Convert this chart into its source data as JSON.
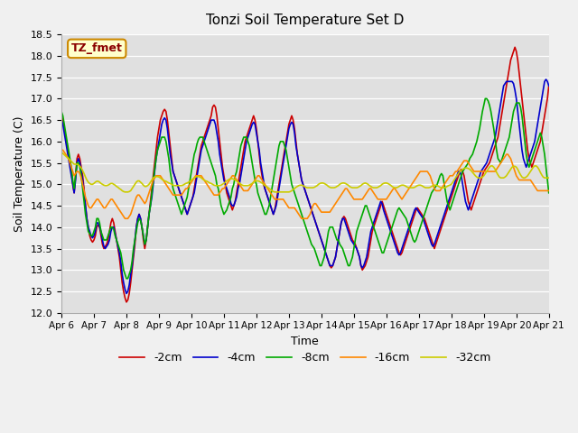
{
  "title": "Tonzi Soil Temperature Set D",
  "xlabel": "Time",
  "ylabel": "Soil Temperature (C)",
  "ylim": [
    12.0,
    18.5
  ],
  "legend_label": "TZ_fmet",
  "series_labels": [
    "-2cm",
    "-4cm",
    "-8cm",
    "-16cm",
    "-32cm"
  ],
  "series_colors": [
    "#cc0000",
    "#0000cc",
    "#00aa00",
    "#ff8800",
    "#cccc00"
  ],
  "x_tick_labels": [
    "Apr 6",
    "Apr 7",
    "Apr 8",
    "Apr 9",
    "Apr 10",
    "Apr 11",
    "Apr 12",
    "Apr 13",
    "Apr 14",
    "Apr 15",
    "Apr 16",
    "Apr 17",
    "Apr 18",
    "Apr 19",
    "Apr 20",
    "Apr 21"
  ],
  "data_2cm": [
    16.6,
    16.5,
    16.3,
    16.1,
    15.9,
    15.7,
    15.5,
    15.3,
    15.0,
    14.8,
    15.2,
    15.6,
    15.7,
    15.6,
    15.4,
    15.2,
    14.9,
    14.5,
    14.2,
    14.0,
    13.8,
    13.7,
    13.65,
    13.7,
    13.8,
    14.0,
    14.05,
    14.0,
    13.8,
    13.6,
    13.5,
    13.55,
    13.6,
    13.7,
    13.9,
    14.1,
    14.2,
    14.1,
    13.9,
    13.7,
    13.5,
    13.3,
    13.0,
    12.7,
    12.5,
    12.35,
    12.25,
    12.3,
    12.45,
    12.7,
    13.0,
    13.3,
    13.6,
    14.0,
    14.2,
    14.3,
    14.2,
    14.0,
    13.7,
    13.5,
    13.7,
    14.0,
    14.3,
    14.6,
    14.9,
    15.2,
    15.5,
    15.8,
    16.1,
    16.3,
    16.5,
    16.6,
    16.7,
    16.75,
    16.7,
    16.5,
    16.2,
    15.9,
    15.6,
    15.3,
    15.2,
    15.1,
    15.0,
    14.9,
    14.8,
    14.7,
    14.6,
    14.5,
    14.4,
    14.3,
    14.4,
    14.5,
    14.6,
    14.7,
    14.9,
    15.1,
    15.3,
    15.5,
    15.7,
    15.9,
    16.0,
    16.1,
    16.2,
    16.3,
    16.4,
    16.5,
    16.6,
    16.8,
    16.85,
    16.8,
    16.6,
    16.3,
    16.0,
    15.7,
    15.4,
    15.2,
    15.0,
    14.8,
    14.7,
    14.6,
    14.5,
    14.4,
    14.5,
    14.6,
    14.8,
    15.0,
    15.2,
    15.4,
    15.6,
    15.8,
    16.0,
    16.1,
    16.2,
    16.3,
    16.4,
    16.5,
    16.6,
    16.5,
    16.3,
    16.0,
    15.7,
    15.4,
    15.2,
    15.0,
    14.9,
    14.8,
    14.7,
    14.6,
    14.5,
    14.4,
    14.3,
    14.4,
    14.6,
    14.8,
    15.0,
    15.2,
    15.4,
    15.6,
    15.8,
    16.0,
    16.2,
    16.4,
    16.5,
    16.6,
    16.5,
    16.3,
    16.0,
    15.7,
    15.5,
    15.3,
    15.1,
    15.0,
    14.9,
    14.8,
    14.7,
    14.6,
    14.5,
    14.4,
    14.3,
    14.2,
    14.1,
    14.0,
    13.9,
    13.8,
    13.7,
    13.6,
    13.5,
    13.4,
    13.3,
    13.2,
    13.1,
    13.05,
    13.1,
    13.2,
    13.3,
    13.5,
    13.7,
    13.9,
    14.1,
    14.2,
    14.25,
    14.2,
    14.1,
    14.0,
    13.9,
    13.8,
    13.7,
    13.65,
    13.6,
    13.5,
    13.4,
    13.3,
    13.1,
    13.0,
    13.05,
    13.1,
    13.2,
    13.3,
    13.5,
    13.7,
    13.9,
    14.0,
    14.1,
    14.2,
    14.3,
    14.4,
    14.5,
    14.6,
    14.5,
    14.4,
    14.3,
    14.2,
    14.1,
    14.0,
    13.9,
    13.8,
    13.7,
    13.6,
    13.5,
    13.4,
    13.35,
    13.4,
    13.5,
    13.6,
    13.7,
    13.8,
    13.9,
    14.0,
    14.1,
    14.2,
    14.3,
    14.4,
    14.45,
    14.4,
    14.35,
    14.3,
    14.25,
    14.2,
    14.1,
    14.0,
    13.9,
    13.8,
    13.7,
    13.6,
    13.5,
    13.6,
    13.7,
    13.8,
    13.9,
    14.0,
    14.1,
    14.2,
    14.3,
    14.4,
    14.5,
    14.6,
    14.7,
    14.8,
    14.9,
    15.0,
    15.1,
    15.2,
    15.3,
    15.35,
    15.3,
    15.2,
    15.0,
    14.8,
    14.6,
    14.5,
    14.4,
    14.5,
    14.6,
    14.7,
    14.8,
    14.9,
    15.0,
    15.1,
    15.2,
    15.3,
    15.35,
    15.4,
    15.45,
    15.5,
    15.6,
    15.7,
    15.8,
    15.9,
    16.0,
    16.1,
    16.3,
    16.5,
    16.7,
    16.9,
    17.1,
    17.3,
    17.5,
    17.7,
    17.9,
    18.0,
    18.1,
    18.2,
    18.1,
    17.9,
    17.6,
    17.3,
    17.0,
    16.7,
    16.4,
    16.1,
    15.8,
    15.6,
    15.5,
    15.4,
    15.5,
    15.6,
    15.7,
    15.8,
    15.9,
    16.0,
    16.2,
    16.4,
    16.6,
    16.8,
    17.0,
    17.3,
    17.6,
    17.9,
    18.1,
    18.2,
    18.1,
    17.9,
    17.6,
    17.3,
    17.0,
    16.7,
    16.4,
    16.1,
    15.8,
    15.6,
    15.5,
    15.4,
    15.5,
    15.6,
    15.7,
    15.8,
    15.9,
    16.0,
    16.1,
    16.2,
    16.3,
    16.2,
    16.0,
    15.7,
    15.4,
    15.1,
    14.8,
    14.6,
    14.5,
    14.4,
    14.45,
    14.5
  ],
  "data_4cm": [
    16.5,
    16.4,
    16.2,
    16.0,
    15.8,
    15.6,
    15.4,
    15.2,
    15.0,
    14.8,
    15.1,
    15.5,
    15.6,
    15.5,
    15.3,
    15.1,
    14.8,
    14.5,
    14.2,
    14.0,
    13.9,
    13.8,
    13.75,
    13.8,
    13.9,
    14.1,
    14.1,
    14.0,
    13.9,
    13.7,
    13.55,
    13.5,
    13.55,
    13.6,
    13.7,
    13.9,
    14.0,
    14.0,
    13.85,
    13.7,
    13.55,
    13.4,
    13.2,
    12.9,
    12.7,
    12.55,
    12.45,
    12.5,
    12.65,
    12.9,
    13.1,
    13.4,
    13.7,
    14.0,
    14.2,
    14.3,
    14.2,
    14.0,
    13.8,
    13.6,
    13.7,
    14.0,
    14.3,
    14.5,
    14.7,
    15.0,
    15.3,
    15.6,
    15.8,
    16.0,
    16.2,
    16.4,
    16.5,
    16.55,
    16.5,
    16.3,
    16.0,
    15.7,
    15.5,
    15.3,
    15.2,
    15.1,
    15.0,
    14.9,
    14.8,
    14.7,
    14.6,
    14.5,
    14.4,
    14.3,
    14.4,
    14.5,
    14.6,
    14.7,
    14.8,
    15.0,
    15.2,
    15.4,
    15.6,
    15.8,
    15.9,
    16.0,
    16.1,
    16.2,
    16.3,
    16.4,
    16.5,
    16.5,
    16.5,
    16.4,
    16.2,
    16.0,
    15.7,
    15.5,
    15.3,
    15.1,
    15.0,
    14.9,
    14.8,
    14.7,
    14.55,
    14.5,
    14.5,
    14.6,
    14.7,
    14.9,
    15.0,
    15.2,
    15.4,
    15.6,
    15.8,
    16.0,
    16.1,
    16.2,
    16.3,
    16.4,
    16.45,
    16.4,
    16.2,
    16.0,
    15.8,
    15.5,
    15.3,
    15.1,
    14.9,
    14.8,
    14.7,
    14.6,
    14.5,
    14.4,
    14.3,
    14.4,
    14.5,
    14.7,
    14.9,
    15.1,
    15.3,
    15.5,
    15.7,
    15.9,
    16.1,
    16.3,
    16.4,
    16.45,
    16.4,
    16.2,
    15.9,
    15.7,
    15.5,
    15.3,
    15.1,
    15.0,
    14.9,
    14.8,
    14.7,
    14.6,
    14.5,
    14.4,
    14.3,
    14.2,
    14.1,
    14.0,
    13.9,
    13.8,
    13.7,
    13.6,
    13.5,
    13.4,
    13.3,
    13.2,
    13.1,
    13.1,
    13.1,
    13.2,
    13.3,
    13.5,
    13.7,
    13.9,
    14.1,
    14.2,
    14.2,
    14.1,
    14.0,
    13.9,
    13.8,
    13.7,
    13.65,
    13.6,
    13.55,
    13.5,
    13.4,
    13.3,
    13.1,
    13.05,
    13.1,
    13.2,
    13.3,
    13.5,
    13.7,
    13.9,
    14.0,
    14.1,
    14.2,
    14.3,
    14.4,
    14.5,
    14.6,
    14.55,
    14.4,
    14.3,
    14.2,
    14.1,
    14.0,
    13.9,
    13.8,
    13.7,
    13.6,
    13.5,
    13.4,
    13.35,
    13.4,
    13.5,
    13.6,
    13.7,
    13.8,
    13.9,
    14.0,
    14.1,
    14.2,
    14.3,
    14.4,
    14.45,
    14.4,
    14.35,
    14.3,
    14.25,
    14.2,
    14.1,
    14.0,
    13.9,
    13.8,
    13.7,
    13.6,
    13.55,
    13.6,
    13.7,
    13.8,
    13.9,
    14.0,
    14.1,
    14.2,
    14.3,
    14.4,
    14.5,
    14.6,
    14.7,
    14.8,
    14.9,
    15.0,
    15.1,
    15.2,
    15.3,
    15.3,
    15.2,
    15.0,
    14.8,
    14.6,
    14.5,
    14.4,
    14.5,
    14.6,
    14.7,
    14.8,
    14.9,
    15.0,
    15.1,
    15.2,
    15.3,
    15.35,
    15.4,
    15.45,
    15.5,
    15.6,
    15.7,
    15.8,
    15.9,
    16.0,
    16.1,
    16.3,
    16.5,
    16.7,
    16.9,
    17.1,
    17.3,
    17.35,
    17.4,
    17.4,
    17.4,
    17.4,
    17.4,
    17.35,
    17.2,
    17.0,
    16.7,
    16.4,
    16.1,
    15.8,
    15.6,
    15.5,
    15.4,
    15.5,
    15.6,
    15.7,
    15.8,
    15.9,
    16.0,
    16.2,
    16.4,
    16.6,
    16.8,
    17.0,
    17.2,
    17.4,
    17.45,
    17.4,
    17.3,
    17.1,
    16.8,
    16.5,
    16.2,
    15.9,
    15.7,
    15.6,
    15.5,
    15.4,
    15.5,
    15.6,
    15.7,
    15.8,
    15.9,
    16.0,
    16.1,
    16.2,
    16.1,
    15.9,
    15.7,
    15.4,
    15.1,
    14.8,
    14.6,
    14.5,
    14.4,
    14.45,
    14.5
  ],
  "data_8cm": [
    16.7,
    16.6,
    16.4,
    16.2,
    16.0,
    15.8,
    15.6,
    15.4,
    15.1,
    14.9,
    15.2,
    15.5,
    15.5,
    15.4,
    15.2,
    14.9,
    14.6,
    14.3,
    14.1,
    13.9,
    13.85,
    13.8,
    13.8,
    13.9,
    14.0,
    14.2,
    14.2,
    14.1,
    13.9,
    13.8,
    13.7,
    13.7,
    13.7,
    13.8,
    13.9,
    14.0,
    14.0,
    13.95,
    13.8,
    13.7,
    13.6,
    13.5,
    13.4,
    13.2,
    13.0,
    12.9,
    12.8,
    12.8,
    12.9,
    13.0,
    13.2,
    13.5,
    13.7,
    13.9,
    14.1,
    14.2,
    14.15,
    14.0,
    13.8,
    13.6,
    13.7,
    14.0,
    14.3,
    14.5,
    14.8,
    15.1,
    15.35,
    15.6,
    15.8,
    15.9,
    16.0,
    16.1,
    16.1,
    16.1,
    16.0,
    15.8,
    15.6,
    15.3,
    15.1,
    14.9,
    14.8,
    14.7,
    14.6,
    14.5,
    14.4,
    14.3,
    14.4,
    14.5,
    14.6,
    14.7,
    14.9,
    15.1,
    15.3,
    15.5,
    15.7,
    15.8,
    15.95,
    16.05,
    16.1,
    16.1,
    16.1,
    16.0,
    15.9,
    15.8,
    15.7,
    15.6,
    15.5,
    15.4,
    15.3,
    15.2,
    15.0,
    14.9,
    14.7,
    14.5,
    14.4,
    14.3,
    14.35,
    14.4,
    14.5,
    14.6,
    14.7,
    14.9,
    15.0,
    15.2,
    15.3,
    15.5,
    15.7,
    15.9,
    16.0,
    16.1,
    16.1,
    16.1,
    16.0,
    15.9,
    15.7,
    15.5,
    15.3,
    15.1,
    15.0,
    14.8,
    14.7,
    14.6,
    14.5,
    14.4,
    14.3,
    14.3,
    14.4,
    14.5,
    14.7,
    14.9,
    15.1,
    15.3,
    15.5,
    15.7,
    15.9,
    16.0,
    16.0,
    16.0,
    15.9,
    15.8,
    15.6,
    15.4,
    15.2,
    15.0,
    14.9,
    14.8,
    14.7,
    14.6,
    14.5,
    14.4,
    14.3,
    14.2,
    14.1,
    14.0,
    13.9,
    13.8,
    13.7,
    13.6,
    13.55,
    13.5,
    13.4,
    13.3,
    13.2,
    13.1,
    13.1,
    13.2,
    13.3,
    13.5,
    13.7,
    13.9,
    14.0,
    14.0,
    14.0,
    13.9,
    13.8,
    13.7,
    13.7,
    13.6,
    13.55,
    13.5,
    13.4,
    13.3,
    13.2,
    13.1,
    13.1,
    13.2,
    13.3,
    13.5,
    13.7,
    13.9,
    14.0,
    14.1,
    14.2,
    14.3,
    14.4,
    14.5,
    14.5,
    14.4,
    14.3,
    14.2,
    14.1,
    14.0,
    13.9,
    13.8,
    13.7,
    13.6,
    13.5,
    13.4,
    13.4,
    13.5,
    13.6,
    13.7,
    13.8,
    13.9,
    14.0,
    14.1,
    14.2,
    14.3,
    14.4,
    14.45,
    14.4,
    14.35,
    14.3,
    14.25,
    14.2,
    14.1,
    14.0,
    13.9,
    13.8,
    13.7,
    13.65,
    13.7,
    13.8,
    13.9,
    14.0,
    14.1,
    14.2,
    14.3,
    14.4,
    14.5,
    14.6,
    14.7,
    14.8,
    14.85,
    14.9,
    14.95,
    15.0,
    15.1,
    15.2,
    15.25,
    15.2,
    15.0,
    14.8,
    14.6,
    14.5,
    14.4,
    14.5,
    14.6,
    14.7,
    14.8,
    14.9,
    15.0,
    15.1,
    15.2,
    15.3,
    15.35,
    15.4,
    15.45,
    15.5,
    15.6,
    15.65,
    15.7,
    15.8,
    15.9,
    16.0,
    16.15,
    16.3,
    16.5,
    16.7,
    16.85,
    17.0,
    17.0,
    16.95,
    16.85,
    16.7,
    16.5,
    16.3,
    16.05,
    15.8,
    15.6,
    15.55,
    15.5,
    15.6,
    15.7,
    15.8,
    15.9,
    16.0,
    16.1,
    16.3,
    16.5,
    16.7,
    16.8,
    16.9,
    16.9,
    16.9,
    16.8,
    16.6,
    16.3,
    16.0,
    15.7,
    15.5,
    15.4,
    15.5,
    15.6,
    15.7,
    15.8,
    15.9,
    16.0,
    16.1,
    16.2,
    16.1,
    15.9,
    15.7,
    15.4,
    15.1,
    14.8,
    14.6,
    14.5,
    14.4,
    14.45,
    14.5
  ],
  "data_16cm": [
    15.8,
    15.8,
    15.75,
    15.7,
    15.65,
    15.6,
    15.5,
    15.4,
    15.3,
    15.2,
    15.25,
    15.3,
    15.3,
    15.25,
    15.15,
    15.0,
    14.85,
    14.7,
    14.6,
    14.5,
    14.45,
    14.45,
    14.5,
    14.55,
    14.6,
    14.65,
    14.65,
    14.6,
    14.55,
    14.5,
    14.45,
    14.45,
    14.5,
    14.55,
    14.6,
    14.65,
    14.65,
    14.6,
    14.55,
    14.5,
    14.45,
    14.4,
    14.35,
    14.3,
    14.25,
    14.2,
    14.2,
    14.2,
    14.25,
    14.3,
    14.4,
    14.5,
    14.6,
    14.7,
    14.75,
    14.75,
    14.7,
    14.65,
    14.6,
    14.55,
    14.6,
    14.7,
    14.8,
    14.9,
    15.0,
    15.1,
    15.15,
    15.2,
    15.2,
    15.2,
    15.2,
    15.15,
    15.1,
    15.05,
    15.0,
    14.95,
    14.9,
    14.85,
    14.8,
    14.75,
    14.75,
    14.75,
    14.75,
    14.75,
    14.75,
    14.75,
    14.8,
    14.85,
    14.9,
    14.9,
    14.95,
    15.0,
    15.05,
    15.1,
    15.15,
    15.2,
    15.2,
    15.2,
    15.2,
    15.2,
    15.15,
    15.1,
    15.05,
    15.0,
    14.95,
    14.9,
    14.85,
    14.8,
    14.75,
    14.75,
    14.75,
    14.75,
    14.8,
    14.85,
    14.9,
    14.9,
    14.95,
    15.0,
    15.05,
    15.1,
    15.15,
    15.2,
    15.2,
    15.15,
    15.1,
    15.05,
    15.0,
    14.95,
    14.9,
    14.85,
    14.85,
    14.85,
    14.85,
    14.9,
    14.95,
    15.0,
    15.05,
    15.1,
    15.15,
    15.2,
    15.2,
    15.15,
    15.1,
    15.05,
    15.0,
    14.95,
    14.9,
    14.85,
    14.8,
    14.75,
    14.7,
    14.65,
    14.65,
    14.65,
    14.65,
    14.65,
    14.65,
    14.65,
    14.6,
    14.55,
    14.5,
    14.45,
    14.45,
    14.45,
    14.45,
    14.45,
    14.4,
    14.35,
    14.3,
    14.25,
    14.2,
    14.2,
    14.2,
    14.2,
    14.2,
    14.25,
    14.3,
    14.4,
    14.5,
    14.55,
    14.55,
    14.5,
    14.45,
    14.4,
    14.35,
    14.35,
    14.35,
    14.35,
    14.35,
    14.35,
    14.35,
    14.4,
    14.45,
    14.5,
    14.55,
    14.6,
    14.65,
    14.7,
    14.75,
    14.8,
    14.85,
    14.9,
    14.9,
    14.85,
    14.8,
    14.75,
    14.7,
    14.65,
    14.65,
    14.65,
    14.65,
    14.65,
    14.65,
    14.65,
    14.7,
    14.75,
    14.8,
    14.85,
    14.9,
    14.9,
    14.85,
    14.8,
    14.75,
    14.7,
    14.65,
    14.65,
    14.65,
    14.65,
    14.65,
    14.65,
    14.65,
    14.7,
    14.75,
    14.8,
    14.85,
    14.9,
    14.9,
    14.85,
    14.8,
    14.75,
    14.7,
    14.65,
    14.7,
    14.75,
    14.8,
    14.85,
    14.9,
    14.95,
    15.0,
    15.05,
    15.1,
    15.15,
    15.2,
    15.25,
    15.3,
    15.3,
    15.3,
    15.3,
    15.3,
    15.3,
    15.25,
    15.2,
    15.1,
    15.0,
    14.9,
    14.85,
    14.85,
    14.85,
    14.85,
    14.9,
    14.95,
    15.0,
    15.05,
    15.1,
    15.15,
    15.2,
    15.2,
    15.2,
    15.25,
    15.3,
    15.3,
    15.35,
    15.4,
    15.45,
    15.5,
    15.55,
    15.55,
    15.55,
    15.5,
    15.45,
    15.4,
    15.35,
    15.3,
    15.3,
    15.3,
    15.3,
    15.3,
    15.3,
    15.3,
    15.3,
    15.3,
    15.3,
    15.3,
    15.3,
    15.3,
    15.3,
    15.3,
    15.3,
    15.35,
    15.4,
    15.45,
    15.5,
    15.55,
    15.6,
    15.65,
    15.7,
    15.7,
    15.65,
    15.6,
    15.5,
    15.4,
    15.3,
    15.2,
    15.15,
    15.1,
    15.1,
    15.1,
    15.1,
    15.1,
    15.1,
    15.1,
    15.1,
    15.1,
    15.05,
    15.0,
    14.95,
    14.9,
    14.85,
    14.85,
    14.85,
    14.85,
    14.85,
    14.85,
    14.85,
    14.85,
    14.85,
    14.85,
    14.85,
    14.85,
    14.85,
    14.85,
    14.85,
    14.85,
    14.85,
    14.85,
    14.85,
    14.85,
    14.85,
    14.85,
    14.85,
    14.85,
    14.85,
    14.85,
    14.85,
    14.85,
    14.85,
    14.85
  ],
  "data_32cm": [
    15.75,
    15.72,
    15.69,
    15.66,
    15.63,
    15.6,
    15.57,
    15.54,
    15.5,
    15.47,
    15.47,
    15.47,
    15.45,
    15.42,
    15.38,
    15.32,
    15.25,
    15.17,
    15.1,
    15.05,
    15.02,
    15.0,
    15.0,
    15.02,
    15.05,
    15.07,
    15.07,
    15.05,
    15.02,
    15.0,
    14.98,
    14.97,
    14.97,
    14.98,
    15.0,
    15.02,
    15.02,
    15.0,
    14.98,
    14.95,
    14.93,
    14.9,
    14.88,
    14.85,
    14.83,
    14.82,
    14.82,
    14.82,
    14.83,
    14.85,
    14.9,
    14.95,
    15.0,
    15.05,
    15.08,
    15.08,
    15.05,
    15.02,
    14.98,
    14.95,
    14.95,
    14.97,
    15.0,
    15.05,
    15.1,
    15.15,
    15.17,
    15.18,
    15.18,
    15.17,
    15.15,
    15.12,
    15.1,
    15.08,
    15.07,
    15.05,
    15.03,
    15.02,
    15.0,
    14.98,
    14.97,
    14.97,
    14.97,
    14.97,
    14.97,
    14.97,
    14.98,
    15.0,
    15.02,
    15.03,
    15.05,
    15.07,
    15.1,
    15.12,
    15.15,
    15.17,
    15.18,
    15.18,
    15.17,
    15.15,
    15.12,
    15.1,
    15.08,
    15.07,
    15.05,
    15.03,
    15.02,
    15.0,
    14.98,
    14.97,
    14.97,
    14.97,
    14.97,
    14.98,
    15.0,
    15.02,
    15.05,
    15.08,
    15.1,
    15.12,
    15.13,
    15.13,
    15.12,
    15.1,
    15.08,
    15.05,
    15.03,
    15.0,
    14.98,
    14.97,
    14.97,
    14.97,
    14.97,
    14.98,
    15.0,
    15.02,
    15.05,
    15.07,
    15.08,
    15.08,
    15.07,
    15.05,
    15.03,
    15.0,
    14.97,
    14.95,
    14.93,
    14.9,
    14.88,
    14.85,
    14.83,
    14.82,
    14.82,
    14.82,
    14.82,
    14.82,
    14.82,
    14.82,
    14.82,
    14.82,
    14.82,
    14.82,
    14.83,
    14.85,
    14.88,
    14.9,
    14.93,
    14.95,
    14.97,
    14.98,
    14.98,
    14.97,
    14.95,
    14.93,
    14.92,
    14.92,
    14.92,
    14.92,
    14.92,
    14.93,
    14.95,
    14.97,
    15.0,
    15.02,
    15.03,
    15.03,
    15.02,
    15.0,
    14.98,
    14.95,
    14.93,
    14.92,
    14.92,
    14.92,
    14.93,
    14.95,
    14.97,
    15.0,
    15.02,
    15.03,
    15.03,
    15.02,
    15.0,
    14.98,
    14.95,
    14.93,
    14.92,
    14.92,
    14.92,
    14.92,
    14.93,
    14.95,
    14.97,
    15.0,
    15.02,
    15.03,
    15.02,
    15.0,
    14.97,
    14.95,
    14.93,
    14.92,
    14.92,
    14.92,
    14.93,
    14.95,
    14.97,
    15.0,
    15.02,
    15.03,
    15.03,
    15.02,
    15.0,
    14.98,
    14.95,
    14.93,
    14.92,
    14.92,
    14.93,
    14.95,
    14.97,
    14.98,
    14.98,
    14.97,
    14.95,
    14.93,
    14.92,
    14.92,
    14.92,
    14.92,
    14.93,
    14.95,
    14.97,
    14.98,
    14.98,
    14.97,
    14.95,
    14.93,
    14.92,
    14.92,
    14.92,
    14.93,
    14.95,
    14.97,
    14.98,
    14.98,
    14.97,
    14.95,
    14.93,
    14.92,
    14.92,
    14.92,
    14.93,
    14.95,
    14.97,
    14.98,
    15.0,
    15.05,
    15.1,
    15.15,
    15.2,
    15.25,
    15.3,
    15.33,
    15.35,
    15.37,
    15.38,
    15.38,
    15.37,
    15.35,
    15.32,
    15.28,
    15.24,
    15.2,
    15.17,
    15.15,
    15.15,
    15.15,
    15.17,
    15.2,
    15.25,
    15.3,
    15.35,
    15.4,
    15.43,
    15.43,
    15.4,
    15.35,
    15.28,
    15.22,
    15.17,
    15.15,
    15.15,
    15.15,
    15.17,
    15.2,
    15.25,
    15.3,
    15.35,
    15.4,
    15.42,
    15.42,
    15.4,
    15.35,
    15.28,
    15.22,
    15.17,
    15.15,
    15.15,
    15.17,
    15.2,
    15.25,
    15.3,
    15.35,
    15.4,
    15.43,
    15.43,
    15.4,
    15.35,
    15.28,
    15.22,
    15.17,
    15.15,
    15.15,
    15.15,
    15.15
  ]
}
